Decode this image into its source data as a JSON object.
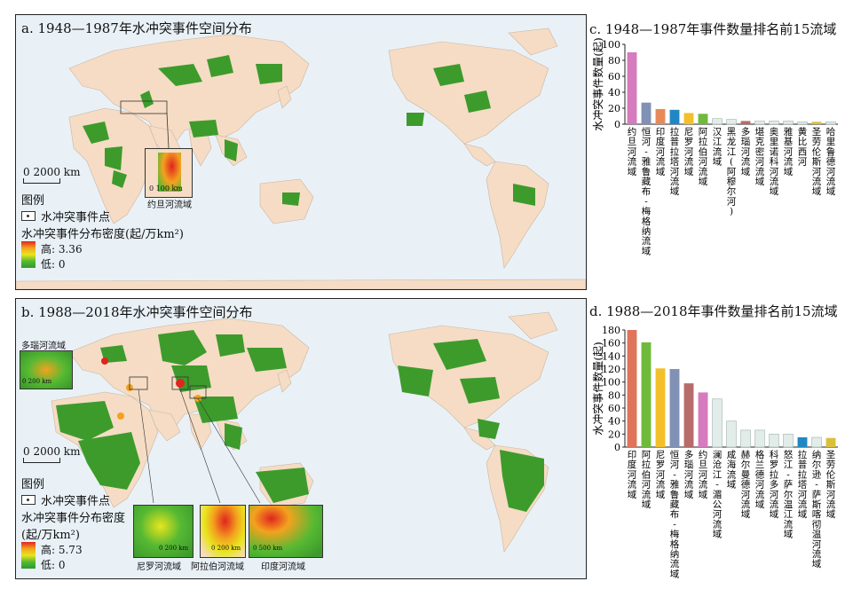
{
  "panel_a": {
    "title": "a. 1948—1987年水冲突事件空间分布",
    "scale_label": "0   2000 km",
    "legend_heading": "图例",
    "legend_event_point": "水冲突事件点",
    "legend_density_heading": "水冲突事件分布密度(起/万km²)",
    "legend_high": "高: 3.36",
    "legend_low": "低: 0",
    "inset_label": "约旦河流域",
    "inset_scale": "0   100 km"
  },
  "panel_b": {
    "title": "b. 1988—2018年水冲突事件空间分布",
    "scale_label": "0   2000 km",
    "legend_heading": "图例",
    "legend_event_point": "水冲突事件点",
    "legend_density_heading": "水冲突事件分布密度",
    "legend_density_unit": "(起/万km²)",
    "legend_high": "高: 5.73",
    "legend_low": "低: 0",
    "inset_danube_label": "多瑙河流域",
    "inset_danube_scale": "0  200 km",
    "inset_nile_label": "尼罗河流域",
    "inset_nile_scale": "0 200 km",
    "inset_arabian_label": "阿拉伯河流域",
    "inset_arabian_scale": "0 200 km",
    "inset_indus_label": "印度河流域",
    "inset_indus_scale": "0  500 km"
  },
  "colors": {
    "land": "#f6dcc4",
    "ocean": "#e9f1f7",
    "basin_green": "#3d9b2c",
    "high": "#e0241f",
    "mid": "#f3a21e",
    "low": "#56b933"
  },
  "chart_data": [
    {
      "type": "bar",
      "title": "c. 1948—1987年事件数量排名前15流域",
      "ylabel": "水冲突事件数量(起)",
      "ylim": [
        0,
        100
      ],
      "yticks": [
        0,
        20,
        40,
        60,
        80,
        100
      ],
      "categories": [
        "约旦河流域",
        "恒河-雅鲁藏布-梅格纳流域",
        "印度河流域",
        "拉普拉塔河流域",
        "尼罗河流域",
        "阿拉伯河流域",
        "汉江流域",
        "黑龙江(阿穆尔河)",
        "多瑙河流域",
        "堪克密河流域",
        "奥里诺科河流域",
        "雅基河流域",
        "黄比西河",
        "圣劳伦斯河流域",
        "哈里鲁德河流域"
      ],
      "values": [
        90,
        27,
        19,
        18,
        14,
        13,
        7,
        6,
        4,
        4,
        4,
        4,
        3,
        3,
        3
      ],
      "colors": [
        "#d67bbd",
        "#8191b5",
        "#e68a5a",
        "#1f88c4",
        "#f3c02a",
        "#6fba3b",
        "#c9d6d3",
        "#c9d6d3",
        "#b86b6b",
        "#c9d6d3",
        "#c9d6d3",
        "#c9d6d3",
        "#c9d6d3",
        "#d9c03a",
        "#c9d6d3"
      ]
    },
    {
      "type": "bar",
      "title": "d. 1988—2018年事件数量排名前15流域",
      "ylabel": "水冲突事件数量(起)",
      "ylim": [
        0,
        180
      ],
      "yticks": [
        0,
        20,
        40,
        60,
        80,
        100,
        120,
        140,
        160,
        180
      ],
      "categories": [
        "印度河流域",
        "阿拉伯河流域",
        "尼罗河流域",
        "恒河-雅鲁藏布-梅格纳流域",
        "多瑙河流域",
        "约旦河流域",
        "澜沧江-湄公河流域",
        "咸海流域",
        "赫尔曼德河流域",
        "格兰德河流域",
        "科罗拉多河流域",
        "怒江-萨尔温江流域",
        "拉普拉塔河流域",
        "纳尔逊-萨斯喀彻温河流域",
        "圣劳伦斯河流域"
      ],
      "values": [
        180,
        161,
        121,
        120,
        98,
        84,
        74,
        40,
        26,
        26,
        20,
        20,
        15,
        15,
        14
      ],
      "colors": [
        "#e0745a",
        "#6fba3b",
        "#f3c02a",
        "#8191b5",
        "#b86b6b",
        "#d67bbd",
        "#c9d6d3",
        "#c9d6d3",
        "#c9d6d3",
        "#c9d6d3",
        "#c9d6d3",
        "#c9d6d3",
        "#1f88c4",
        "#c9d6d3",
        "#d9c03a"
      ]
    }
  ]
}
